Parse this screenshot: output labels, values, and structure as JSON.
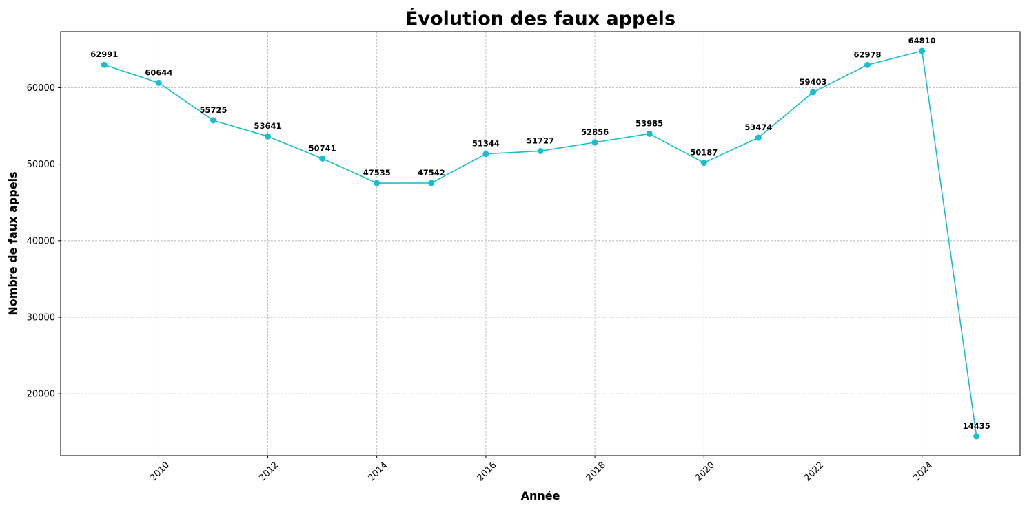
{
  "chart_data": {
    "type": "line",
    "title": "Évolution des faux appels",
    "xlabel": "Année",
    "ylabel": "Nombre de faux appels",
    "x": [
      2009,
      2010,
      2011,
      2012,
      2013,
      2014,
      2015,
      2016,
      2017,
      2018,
      2019,
      2020,
      2021,
      2022,
      2023,
      2024,
      2025
    ],
    "series": [
      {
        "values": [
          62991,
          60644,
          55725,
          53641,
          50741,
          47535,
          47542,
          51344,
          51727,
          52856,
          53985,
          50187,
          53474,
          59403,
          62978,
          64810,
          14435
        ],
        "color": "#17becf",
        "marker": "circle"
      }
    ],
    "data_labels": [
      "62991",
      "60644",
      "55725",
      "53641",
      "50741",
      "47535",
      "47542",
      "51344",
      "51727",
      "52856",
      "53985",
      "50187",
      "53474",
      "59403",
      "62978",
      "64810",
      "14435"
    ],
    "xticks": [
      2010,
      2012,
      2014,
      2016,
      2018,
      2020,
      2022,
      2024
    ],
    "xtick_labels": [
      "2010",
      "2012",
      "2014",
      "2016",
      "2018",
      "2020",
      "2022",
      "2024"
    ],
    "yticks": [
      20000,
      30000,
      40000,
      50000,
      60000
    ],
    "ytick_labels": [
      "20000",
      "30000",
      "40000",
      "50000",
      "60000"
    ],
    "xlim": [
      2008.2,
      2025.8
    ],
    "ylim": [
      11916,
      67329
    ],
    "grid": true,
    "legend": "none",
    "xtick_rotation_deg": 45
  }
}
